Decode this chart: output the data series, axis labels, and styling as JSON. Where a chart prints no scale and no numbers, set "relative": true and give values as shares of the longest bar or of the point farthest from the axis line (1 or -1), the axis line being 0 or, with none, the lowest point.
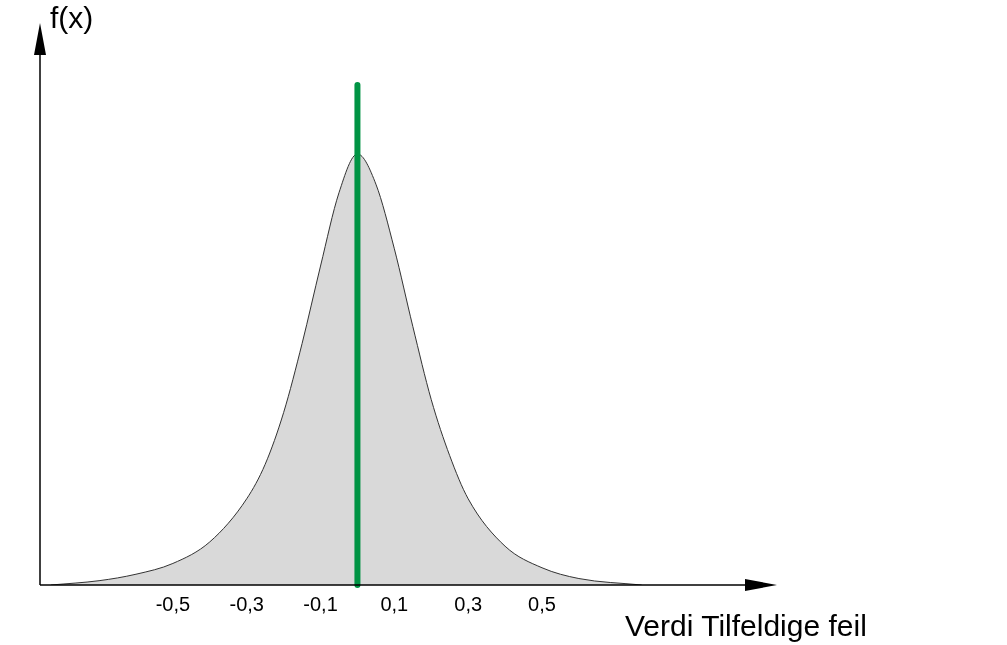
{
  "chart_data": {
    "type": "area",
    "relative": true,
    "xlabel": "Verdi Tilfeldige feil",
    "ylabel": "f(x)",
    "xlim": [
      -0.86,
      1.05
    ],
    "xticks": [
      {
        "value": -0.5,
        "label": "-0,5"
      },
      {
        "value": -0.3,
        "label": "-0,3"
      },
      {
        "value": -0.1,
        "label": "-0,1"
      },
      {
        "value": 0.1,
        "label": "0,1"
      },
      {
        "value": 0.3,
        "label": "0,3"
      },
      {
        "value": 0.5,
        "label": "0,5"
      }
    ],
    "series": [
      {
        "color": "#d9d9d9",
        "x": [
          -0.83,
          -0.7,
          -0.6,
          -0.5,
          -0.4,
          -0.3,
          -0.25,
          -0.2,
          -0.15,
          -0.1,
          -0.05,
          0,
          0.05,
          0.1,
          0.15,
          0.2,
          0.25,
          0.3,
          0.4,
          0.5,
          0.6,
          0.77
        ],
        "values": [
          0,
          0.01,
          0.025,
          0.05,
          0.1,
          0.2,
          0.28,
          0.4,
          0.56,
          0.74,
          0.91,
          1,
          0.93,
          0.78,
          0.6,
          0.43,
          0.3,
          0.2,
          0.09,
          0.04,
          0.015,
          0
        ]
      }
    ],
    "ref_lines": [
      {
        "axis": "x",
        "value": 0,
        "color": "#009444"
      }
    ],
    "grid": false,
    "legend": false
  }
}
